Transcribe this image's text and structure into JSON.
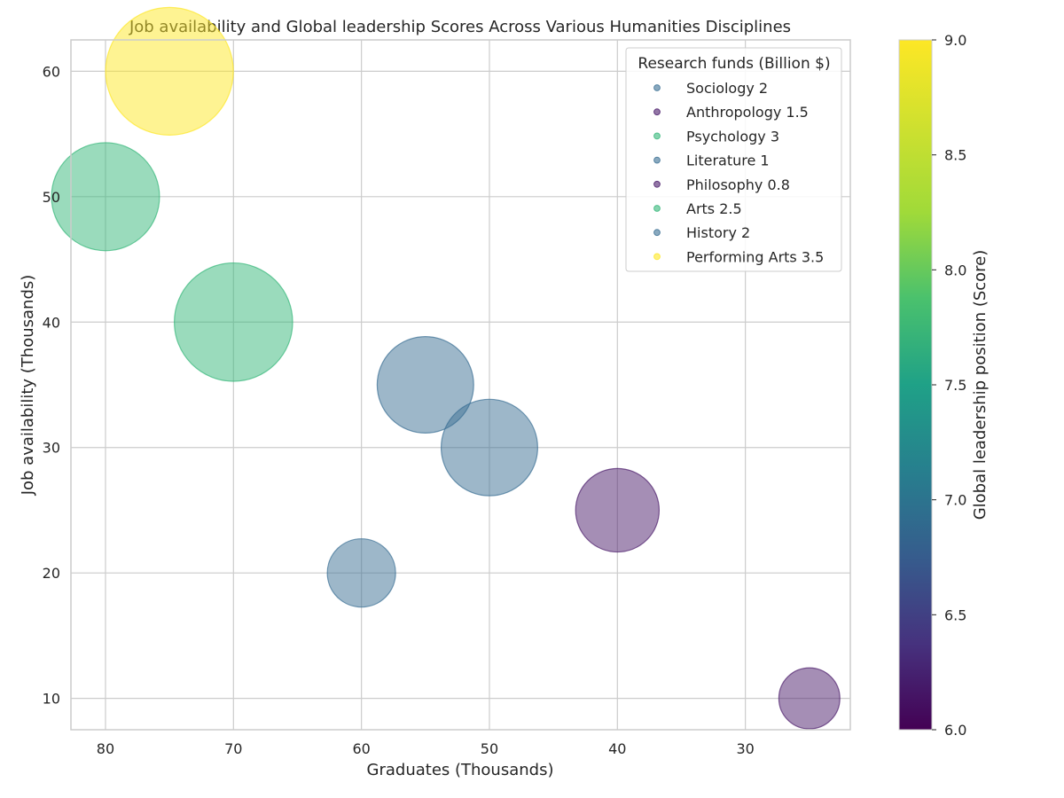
{
  "chart_data": {
    "type": "scatter",
    "title": "Job availability and Global leadership Scores Across Various Humanities Disciplines",
    "xlabel": "Graduates (Thousands)",
    "ylabel": "Job availability (Thousands)",
    "x_inverted": true,
    "xlim": [
      82.7,
      21.8
    ],
    "ylim": [
      7.5,
      62.5
    ],
    "x_ticks": [
      80,
      70,
      60,
      50,
      40,
      30
    ],
    "y_ticks": [
      10,
      20,
      30,
      40,
      50,
      60
    ],
    "grid": true,
    "legend": {
      "title": "Research funds (Billion $)",
      "placement": "top-right"
    },
    "colorbar": {
      "label": "Global leadership position (Score)",
      "range": [
        6.0,
        9.0
      ],
      "ticks": [
        "6.0",
        "6.5",
        "7.0",
        "7.5",
        "8.0",
        "8.5",
        "9.0"
      ],
      "colormap": "viridis"
    },
    "series": [
      {
        "name": "Sociology 2",
        "x": 55,
        "y": 35,
        "funds": 2,
        "score": 7.0,
        "color": "#3b6f94"
      },
      {
        "name": "Anthropology 1.5",
        "x": 40,
        "y": 25,
        "funds": 1.5,
        "score": 6.3,
        "color": "#4b1d6b"
      },
      {
        "name": "Psychology 3",
        "x": 70,
        "y": 40,
        "funds": 3,
        "score": 8.0,
        "color": "#35b779"
      },
      {
        "name": "Literature 1",
        "x": 60,
        "y": 20,
        "funds": 1,
        "score": 7.0,
        "color": "#3b6f94"
      },
      {
        "name": "Philosophy 0.8",
        "x": 25,
        "y": 10,
        "funds": 0.8,
        "score": 6.3,
        "color": "#4b1d6b"
      },
      {
        "name": "Arts 2.5",
        "x": 80,
        "y": 50,
        "funds": 2.5,
        "score": 8.0,
        "color": "#35b779"
      },
      {
        "name": "History 2",
        "x": 50,
        "y": 30,
        "funds": 2,
        "score": 7.0,
        "color": "#3b6f94"
      },
      {
        "name": "Performing Arts 3.5",
        "x": 75,
        "y": 60,
        "funds": 3.5,
        "score": 9.0,
        "color": "#fde725"
      }
    ]
  }
}
